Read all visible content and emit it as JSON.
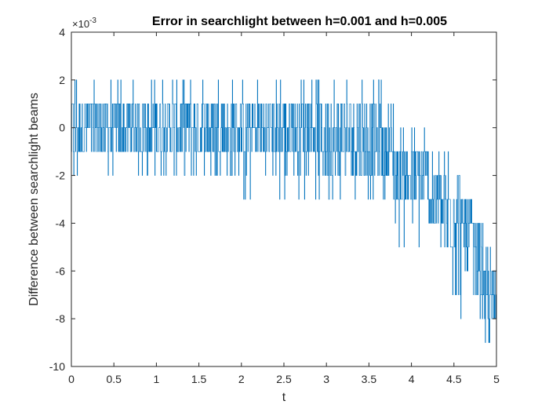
{
  "chart_data": {
    "type": "line",
    "title": "Error in searchlight between h=0.001 and h=0.005",
    "xlabel": "t",
    "ylabel": "Difference between searchlight beams",
    "xlim": [
      0,
      5
    ],
    "ylim": [
      -10,
      4
    ],
    "y_exponent_label": "×10",
    "y_exponent_power": "-3",
    "xticks": [
      0,
      0.5,
      1,
      1.5,
      2,
      2.5,
      3,
      3.5,
      4,
      4.5,
      5
    ],
    "xtick_labels": [
      "0",
      "0.5",
      "1",
      "1.5",
      "2",
      "2.5",
      "3",
      "3.5",
      "4",
      "4.5",
      "5"
    ],
    "yticks": [
      -10,
      -8,
      -6,
      -4,
      -2,
      0,
      2,
      4
    ],
    "ytick_labels": [
      "-10",
      "-8",
      "-6",
      "-4",
      "-2",
      "0",
      "2",
      "4"
    ],
    "grid": false,
    "series_color": "#0072BD",
    "segments": [
      {
        "t": [
          0.0,
          0.9
        ],
        "band": [
          -2,
          2
        ],
        "core": [
          -1,
          1
        ]
      },
      {
        "t": [
          0.9,
          0.95
        ],
        "band": [
          -2,
          2
        ],
        "core": [
          -1,
          0
        ]
      },
      {
        "t": [
          0.95,
          1.7
        ],
        "band": [
          -2,
          2
        ],
        "core": [
          -1,
          1
        ]
      },
      {
        "t": [
          1.7,
          1.83
        ],
        "band": [
          -2,
          2
        ],
        "core": [
          -1,
          1
        ]
      },
      {
        "t": [
          1.83,
          1.9
        ],
        "band": [
          -3,
          2
        ],
        "core": [
          -2,
          1
        ]
      },
      {
        "t": [
          1.9,
          2.9
        ],
        "band": [
          -3,
          2
        ],
        "core": [
          -1,
          1
        ]
      },
      {
        "t": [
          2.9,
          3.65
        ],
        "band": [
          -3,
          2
        ],
        "core": [
          -2,
          1
        ]
      },
      {
        "t": [
          3.65,
          3.8
        ],
        "band": [
          -3,
          1
        ],
        "core": [
          -2,
          0
        ]
      },
      {
        "t": [
          3.8,
          4.2
        ],
        "band": [
          -5,
          0
        ],
        "core": [
          -3,
          -1
        ]
      },
      {
        "t": [
          4.2,
          4.35
        ],
        "band": [
          -5,
          0
        ],
        "core": [
          -4,
          -2
        ]
      },
      {
        "t": [
          4.35,
          4.58
        ],
        "band": [
          -7,
          -1
        ],
        "core": [
          -5,
          -2
        ]
      },
      {
        "t": [
          4.58,
          4.73
        ],
        "band": [
          -8,
          -3
        ],
        "core": [
          -6,
          -3
        ]
      },
      {
        "t": [
          4.73,
          4.85
        ],
        "band": [
          -8,
          -4
        ],
        "core": [
          -7,
          -4
        ]
      },
      {
        "t": [
          4.85,
          5.0
        ],
        "band": [
          -9,
          -5
        ],
        "core": [
          -9,
          -6
        ]
      }
    ]
  }
}
